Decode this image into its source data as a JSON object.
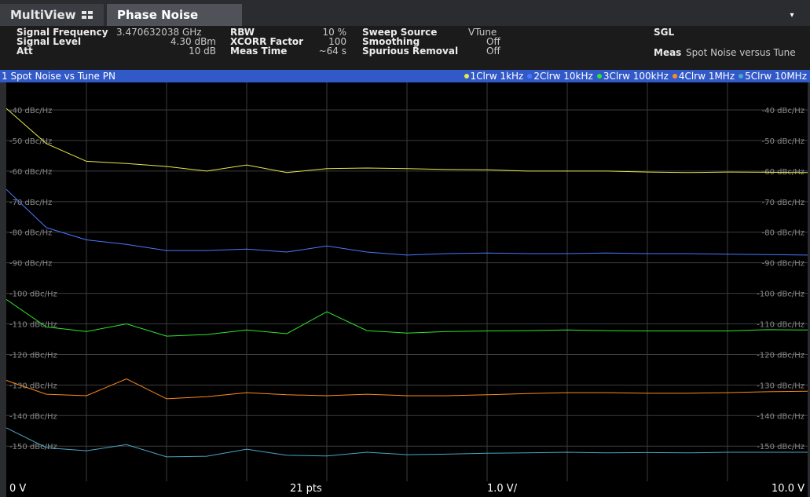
{
  "tabs": {
    "multiview_label": "MultiView",
    "multiview_icon": "grid-icon",
    "active_label": "Phase Noise",
    "dropdown_icon": "▾"
  },
  "info": {
    "signal_frequency_label": "Signal Frequency",
    "signal_frequency_value": "3.470632038 GHz",
    "signal_level_label": "Signal Level",
    "signal_level_value": "4.30 dBm",
    "att_label": "Att",
    "att_value": "10 dB",
    "rbw_label": "RBW",
    "rbw_value": "10 %",
    "xcorr_label": "XCORR Factor",
    "xcorr_value": "100",
    "meas_time_label": "Meas Time",
    "meas_time_value": "~64 s",
    "sweep_source_label": "Sweep Source",
    "sweep_source_value": "VTune",
    "smoothing_label": "Smoothing",
    "smoothing_value": "Off",
    "spurious_label": "Spurious Removal",
    "spurious_value": "Off",
    "sgl_label": "SGL",
    "meas_label": "Meas",
    "meas_value": "Spot Noise versus Tune"
  },
  "window": {
    "title": "1 Spot Noise vs Tune PN",
    "legend": [
      {
        "label": "1Clrw 1kHz",
        "color": "#e8e84a"
      },
      {
        "label": "2Clrw 10kHz",
        "color": "#4a78ff"
      },
      {
        "label": "3Clrw 100kHz",
        "color": "#2ee62e"
      },
      {
        "label": "4Clrw 1MHz",
        "color": "#ff8c1a"
      },
      {
        "label": "5Clrw 10MHz",
        "color": "#4aa6c8"
      }
    ]
  },
  "bottom": {
    "start": "0 V",
    "points": "21 pts",
    "per_div": "1.0 V/",
    "stop": "10.0 V"
  },
  "chart_data": {
    "type": "line",
    "y_tick_labels": [
      "-40 dBc/Hz",
      "-50 dBc/Hz",
      "-60 dBc/Hz",
      "-70 dBc/Hz",
      "-80 dBc/Hz",
      "-90 dBc/Hz",
      "-100 dBc/Hz",
      "-110 dBc/Hz",
      "-120 dBc/Hz",
      "-130 dBc/Hz",
      "-140 dBc/Hz",
      "-150 dBc/Hz"
    ],
    "y_tick_values": [
      -40,
      -50,
      -60,
      -70,
      -80,
      -90,
      -100,
      -110,
      -120,
      -130,
      -140,
      -150
    ],
    "ylim": [
      -161.5,
      -31
    ],
    "xlim": [
      0,
      10
    ],
    "x_divisions": 10,
    "grid": true,
    "x": [
      0,
      0.5,
      1,
      1.5,
      2,
      2.5,
      3,
      3.5,
      4,
      4.5,
      5,
      5.5,
      6,
      6.5,
      7,
      7.5,
      8,
      8.5,
      9,
      9.5,
      10
    ],
    "series": [
      {
        "name": "1Clrw 1kHz",
        "color": "#e8e84a",
        "values": [
          -39.5,
          -51,
          -56.8,
          -57.5,
          -58.5,
          -60,
          -58,
          -60.5,
          -59.2,
          -59,
          -59.2,
          -59.5,
          -59.6,
          -60,
          -60,
          -60,
          -60.3,
          -60.5,
          -60.3,
          -60.4,
          -60.5
        ]
      },
      {
        "name": "2Clrw 10kHz",
        "color": "#4a78ff",
        "values": [
          -66,
          -78.5,
          -82.5,
          -84,
          -86,
          -86,
          -85.5,
          -86.5,
          -84.5,
          -86.5,
          -87.5,
          -87,
          -86.8,
          -87,
          -87,
          -86.8,
          -87,
          -87,
          -87.2,
          -87.3,
          -87.5
        ]
      },
      {
        "name": "3Clrw 100kHz",
        "color": "#2ee62e",
        "values": [
          -102,
          -111,
          -112.5,
          -110,
          -114,
          -113.5,
          -112,
          -113.2,
          -106,
          -112.2,
          -113,
          -112.5,
          -112.3,
          -112.2,
          -112,
          -112.2,
          -112.3,
          -112.3,
          -112.3,
          -111.9,
          -112
        ]
      },
      {
        "name": "4Clrw 1MHz",
        "color": "#ff8c1a",
        "values": [
          -128.5,
          -133,
          -133.5,
          -128,
          -134.5,
          -133.8,
          -132.5,
          -133.2,
          -133.5,
          -133,
          -133.5,
          -133.5,
          -133.2,
          -132.8,
          -132.5,
          -132.5,
          -132.7,
          -132.7,
          -132.5,
          -132.2,
          -132
        ]
      },
      {
        "name": "5Clrw 10MHz",
        "color": "#4aa6c8",
        "values": [
          -144,
          -150.5,
          -151.5,
          -149.5,
          -153.5,
          -153.3,
          -151,
          -153,
          -153.2,
          -152,
          -152.8,
          -152.6,
          -152.3,
          -152.2,
          -152,
          -152.2,
          -152.1,
          -152.2,
          -152,
          -152,
          -152
        ]
      }
    ]
  }
}
